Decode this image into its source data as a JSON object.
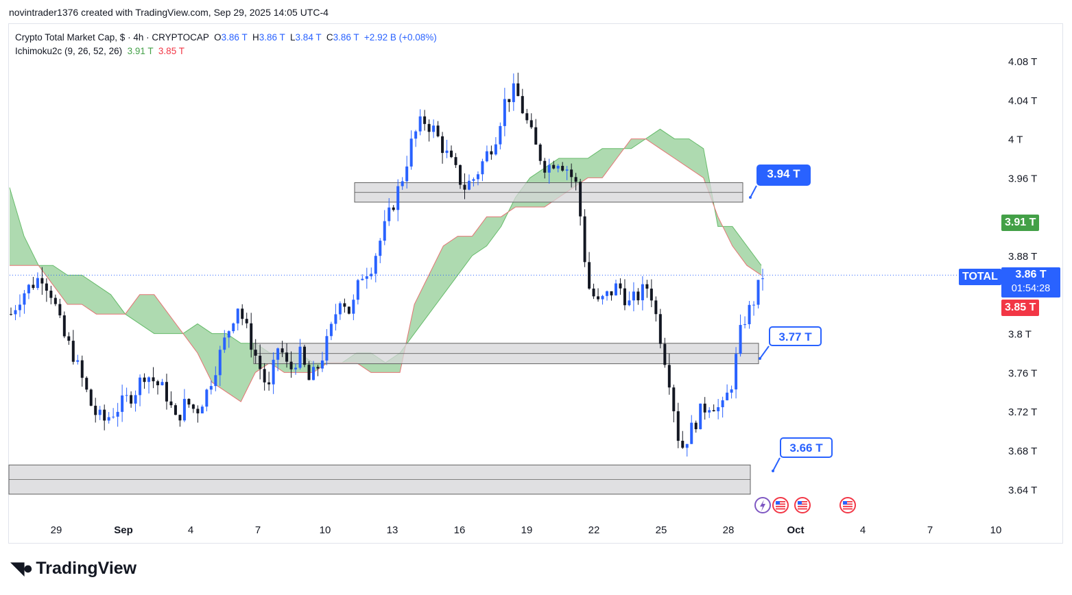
{
  "caption": "novintrader1376 created with TradingView.com, Sep 29, 2025 14:05 UTC-4",
  "legend": {
    "symbol_line": "Crypto Total Market Cap, $ · 4h · CRYPTOCAP",
    "o_label": "O",
    "o_value": "3.86 T",
    "h_label": "H",
    "h_value": "3.86 T",
    "l_label": "L",
    "l_value": "3.84 T",
    "c_label": "C",
    "c_value": "3.86 T",
    "change": "+2.92 B (+0.08%)",
    "indicator": "Ichimoku2c (9, 26, 52, 26)",
    "ind_val1": "3.91 T",
    "ind_val2": "3.85 T"
  },
  "badges": {
    "symbol": "TOTAL",
    "price": "3.86 T",
    "countdown": "01:54:28",
    "cloud_top": "3.91 T",
    "cloud_bottom": "3.85 T"
  },
  "callouts": [
    {
      "text": "3.94 T",
      "style": "filled"
    },
    {
      "text": "3.77 T",
      "style": "outline"
    },
    {
      "text": "3.66 T",
      "style": "outline"
    }
  ],
  "brand": "TradingView",
  "colors": {
    "up": "#2962ff",
    "down": "#131722",
    "cloud": "#a5d6a7",
    "cloud_edge": "#e57373",
    "zone_fill": "#d6d6d8",
    "zone_edge": "#606060",
    "accent": "#2962ff",
    "green_badge": "#43a047",
    "red_badge": "#f23645"
  },
  "chart_data": {
    "type": "candlestick",
    "timeframe": "4h",
    "x_tick_labels": [
      "29",
      "Sep",
      "4",
      "7",
      "10",
      "13",
      "16",
      "19",
      "22",
      "25",
      "28",
      "Oct",
      "4",
      "7",
      "10"
    ],
    "y_tick_labels": [
      "4.08 T",
      "4.04 T",
      "4 T",
      "3.96 T",
      "3.88 T",
      "3.8 T",
      "3.76 T",
      "3.72 T",
      "3.68 T",
      "3.64 T"
    ],
    "y_range_trillions": [
      3.62,
      4.1
    ],
    "last_price": 3.86,
    "price_zones_trillions": [
      [
        3.935,
        3.955
      ],
      [
        3.769,
        3.79
      ],
      [
        3.635,
        3.665
      ]
    ],
    "close_path_trillions": [
      3.82,
      3.84,
      3.85,
      3.86,
      3.84,
      3.8,
      3.78,
      3.75,
      3.72,
      3.71,
      3.72,
      3.73,
      3.74,
      3.76,
      3.75,
      3.74,
      3.71,
      3.73,
      3.72,
      3.74,
      3.77,
      3.8,
      3.83,
      3.8,
      3.77,
      3.74,
      3.79,
      3.76,
      3.78,
      3.75,
      3.77,
      3.8,
      3.84,
      3.82,
      3.86,
      3.87,
      3.9,
      3.93,
      3.96,
      4.0,
      4.02,
      4.01,
      3.99,
      3.97,
      3.95,
      3.96,
      3.98,
      4.0,
      4.04,
      4.05,
      4.02,
      3.99,
      3.97,
      3.98,
      3.97,
      3.95,
      3.85,
      3.83,
      3.84,
      3.85,
      3.83,
      3.84,
      3.85,
      3.8,
      3.75,
      3.68,
      3.7,
      3.72,
      3.73,
      3.72,
      3.75,
      3.81,
      3.83,
      3.86
    ],
    "ichimoku_span_a_trillions": [
      3.95,
      3.9,
      3.87,
      3.87,
      3.86,
      3.86,
      3.85,
      3.84,
      3.82,
      3.81,
      3.8,
      3.8,
      3.8,
      3.81,
      3.8,
      3.8,
      3.79,
      3.79,
      3.78,
      3.78,
      3.78,
      3.77,
      3.77,
      3.77,
      3.78,
      3.78,
      3.77,
      3.78,
      3.8,
      3.82,
      3.84,
      3.86,
      3.88,
      3.89,
      3.91,
      3.94,
      3.96,
      3.97,
      3.98,
      3.98,
      3.98,
      3.99,
      3.99,
      3.99,
      4.0,
      4.01,
      4.0,
      4.0,
      3.99,
      3.91,
      3.91,
      3.89,
      3.87
    ],
    "ichimoku_span_b_trillions": [
      3.87,
      3.87,
      3.87,
      3.85,
      3.83,
      3.83,
      3.82,
      3.82,
      3.82,
      3.84,
      3.84,
      3.82,
      3.8,
      3.78,
      3.75,
      3.74,
      3.73,
      3.76,
      3.77,
      3.76,
      3.76,
      3.76,
      3.77,
      3.77,
      3.77,
      3.76,
      3.76,
      3.76,
      3.83,
      3.86,
      3.89,
      3.9,
      3.9,
      3.92,
      3.92,
      3.93,
      3.93,
      3.93,
      3.94,
      3.95,
      3.96,
      3.96,
      3.98,
      4.0,
      4.0,
      3.99,
      3.98,
      3.97,
      3.96,
      3.92,
      3.89,
      3.87,
      3.86
    ]
  }
}
